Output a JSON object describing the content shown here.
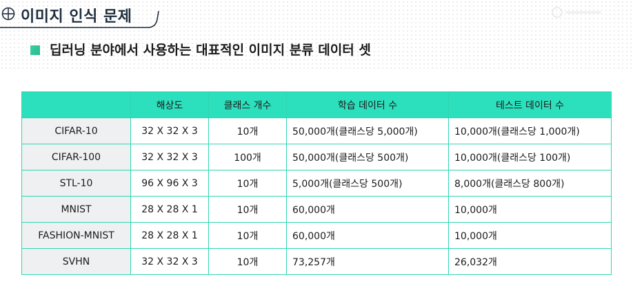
{
  "header": {
    "title": "이미지 인식 문제",
    "icon": "crosshair-circle-icon"
  },
  "subtitle": {
    "text": "딥러닝 분야에서 사용하는 대표적인 이미지 분류 데이터 셋",
    "bullet_color": "#38d3a6"
  },
  "colors": {
    "table_header_bg": "#2de0bd",
    "table_border": "#2ed6b0",
    "row_header_bg": "#eef0f2"
  },
  "table": {
    "columns": [
      "",
      "해상도",
      "클래스 개수",
      "학습 데이터 수",
      "테스트 데이터 수"
    ],
    "rows": [
      {
        "name": "CIFAR-10",
        "resolution": "32 X 32 X 3",
        "classes": "10개",
        "train": "50,000개(클래스당 5,000개)",
        "test": "10,000개(클래스당 1,000개)"
      },
      {
        "name": "CIFAR-100",
        "resolution": "32 X 32 X 3",
        "classes": "100개",
        "train": "50,000개(클래스당 500개)",
        "test": "10,000개(클래스당 100개)"
      },
      {
        "name": "STL-10",
        "resolution": "96 X 96 X 3",
        "classes": "10개",
        "train": "5,000개(클래스당 500개)",
        "test": "8,000개(클래스당 800개)"
      },
      {
        "name": "MNIST",
        "resolution": "28 X 28 X 1",
        "classes": "10개",
        "train": "60,000개",
        "test": "10,000개"
      },
      {
        "name": "FASHION-MNIST",
        "resolution": "28 X 28 X 1",
        "classes": "10개",
        "train": "60,000개",
        "test": "10,000개"
      },
      {
        "name": "SVHN",
        "resolution": "32 X 32 X 3",
        "classes": "10개",
        "train": "73,257개",
        "test": "26,032개"
      }
    ]
  }
}
